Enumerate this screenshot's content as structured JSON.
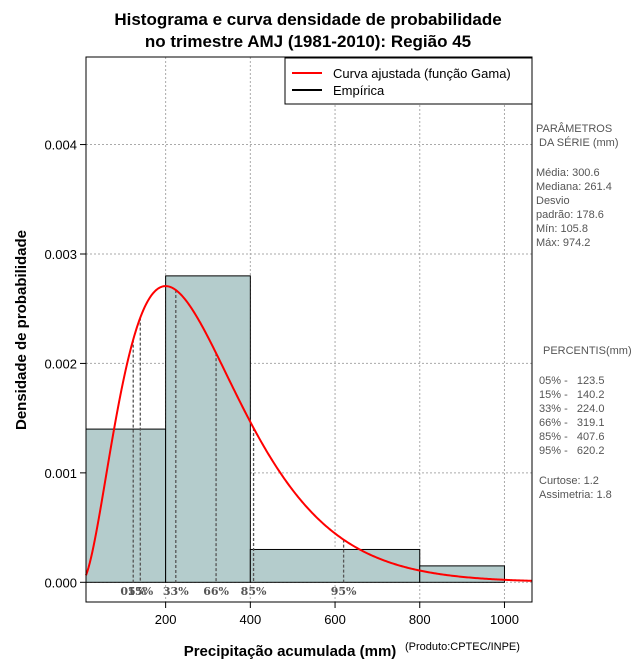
{
  "chart_data": {
    "type": "histogram",
    "title": [
      "Histograma e curva densidade de probabilidade",
      "no trimestre AMJ (1981-2010): Região 45"
    ],
    "xlabel": "Precipitação acumulada (mm)",
    "ylabel": "Densidade de probabilidade",
    "credit": "(Produto:CPTEC/INPE)",
    "xlim": [
      12,
      1065
    ],
    "ylim": [
      -0.00018,
      0.0048
    ],
    "xticks": [
      200,
      400,
      600,
      800,
      1000
    ],
    "yticks": [
      0.0,
      0.001,
      0.002,
      0.003,
      0.004
    ],
    "ytick_labels": [
      "0.000",
      "0.001",
      "0.002",
      "0.003",
      "0.004"
    ],
    "grid": true,
    "bins": [
      {
        "start": 0,
        "end": 200,
        "density": 0.0014
      },
      {
        "start": 200,
        "end": 400,
        "density": 0.0028
      },
      {
        "start": 400,
        "end": 800,
        "density": 0.0003
      },
      {
        "start": 800,
        "end": 1000,
        "density": 0.00015
      }
    ],
    "curve": {
      "name": "Curva ajustada (função Gama)",
      "color": "#ff0000",
      "distribution": "gamma",
      "shape": 3.0,
      "scale": 100.0
    },
    "percentiles": [
      {
        "label": "05%",
        "value": 123.5
      },
      {
        "label": "15%",
        "value": 140.2
      },
      {
        "label": "33%",
        "value": 224.0
      },
      {
        "label": "66%",
        "value": 319.1
      },
      {
        "label": "85%",
        "value": 407.6
      },
      {
        "label": "95%",
        "value": 620.2
      }
    ],
    "legend": [
      {
        "label": "Curva ajustada (função Gama)",
        "color": "#ff0000"
      },
      {
        "label": "Empírica",
        "color": "#000000"
      }
    ],
    "legend_position": "top-right",
    "colors": {
      "bar_fill": "#b4cccc",
      "bar_stroke": "#000000",
      "grid": "#aaaaaa",
      "percentile_line": "#555555"
    }
  },
  "side_panel": {
    "params_title": [
      "PARÂMETROS",
      " DA SÉRIE (mm)"
    ],
    "params": [
      "Média:  300.6",
      "Mediana:  261.4",
      "Desvio",
      "padrão:  178.6",
      "Mín:  105.8",
      "Máx:  974.2"
    ],
    "percentis_title": "PERCENTIS(mm)",
    "percentis": [
      "05% -   123.5",
      "15% -   140.2",
      "33% -   224.0",
      "66% -   319.1",
      "85% -   407.6",
      "95% -   620.2"
    ],
    "stats": [
      "Curtose:  1.2",
      "Assimetria:  1.8"
    ]
  }
}
